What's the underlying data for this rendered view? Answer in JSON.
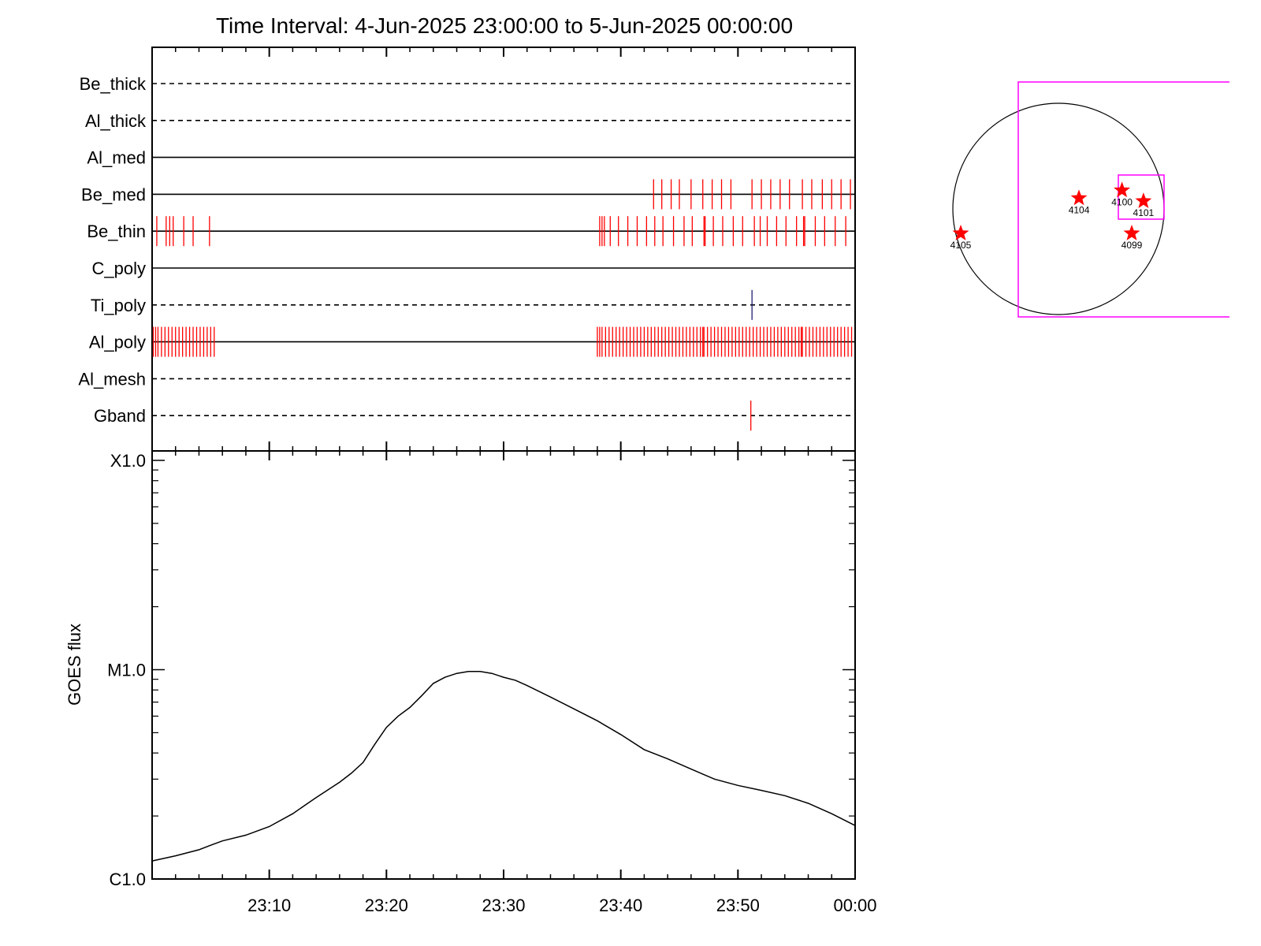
{
  "title": "Time Interval:  4-Jun-2025 23:00:00 to  5-Jun-2025 00:00:00",
  "chart_data": [
    {
      "type": "timeline",
      "xlim": [
        "23:00",
        "00:00"
      ],
      "rows": [
        {
          "label": "Be_thick",
          "line": "dashed",
          "marks": []
        },
        {
          "label": "Al_thick",
          "line": "dashed",
          "marks": []
        },
        {
          "label": "Al_med",
          "line": "solid",
          "marks": []
        },
        {
          "label": "Be_med",
          "line": "solid",
          "marks": [
            42.8,
            43.5,
            44.3,
            45.0,
            46.0,
            47.0,
            47.8,
            48.6,
            49.4,
            51.2,
            52.0,
            52.8,
            53.6,
            54.4,
            55.5,
            56.3,
            57.2,
            58.0,
            58.8,
            59.6
          ]
        },
        {
          "label": "Be_thin",
          "line": "solid",
          "marks": [
            0.4,
            1.2,
            1.5,
            1.8,
            2.7,
            3.5,
            4.9,
            38.2,
            38.4,
            38.6,
            39.1,
            39.8,
            40.6,
            41.4,
            42.2,
            42.9,
            43.6,
            44.5,
            45.4,
            46.1,
            47.1,
            47.2,
            47.9,
            48.7,
            49.6,
            50.4,
            51.4,
            51.9,
            52.5,
            53.3,
            54.1,
            55.0,
            55.6,
            55.7,
            56.6,
            57.4,
            58.3,
            59.2
          ]
        },
        {
          "label": "C_poly",
          "line": "solid",
          "marks": []
        },
        {
          "label": "Ti_poly",
          "line": "dashed",
          "marks": [
            51.2
          ],
          "mark_color": "#1e1e6e"
        },
        {
          "label": "Al_poly",
          "line": "solid",
          "marks": [
            0.1,
            0.3,
            0.5,
            0.8,
            1.1,
            1.4,
            1.7,
            2.0,
            2.3,
            2.6,
            2.9,
            3.2,
            3.5,
            3.8,
            4.1,
            4.4,
            4.7,
            5.0,
            5.3,
            38.0,
            38.2,
            38.4,
            38.7,
            39.0,
            39.3,
            39.6,
            39.9,
            40.2,
            40.5,
            40.8,
            41.1,
            41.4,
            41.7,
            42.0,
            42.3,
            42.6,
            42.9,
            43.2,
            43.5,
            43.8,
            44.1,
            44.4,
            44.7,
            45.0,
            45.3,
            45.6,
            45.9,
            46.2,
            46.5,
            46.8,
            47.0,
            47.1,
            47.4,
            47.7,
            48.0,
            48.3,
            48.6,
            48.9,
            49.2,
            49.5,
            49.8,
            50.1,
            50.4,
            50.7,
            51.0,
            51.3,
            51.6,
            51.9,
            52.2,
            52.5,
            52.8,
            53.1,
            53.4,
            53.7,
            54.0,
            54.3,
            54.6,
            54.9,
            55.2,
            55.4,
            55.5,
            55.8,
            56.1,
            56.4,
            56.7,
            57.0,
            57.3,
            57.6,
            57.9,
            58.2,
            58.5,
            58.8,
            59.1,
            59.4,
            59.7
          ]
        },
        {
          "label": "Al_mesh",
          "line": "dashed",
          "marks": []
        },
        {
          "label": "Gband",
          "line": "dashed",
          "marks": [
            51.1
          ]
        }
      ],
      "mark_color": "#ff0000"
    },
    {
      "type": "line",
      "ylabel": "GOES flux",
      "yscale": "log",
      "ylim": [
        1e-06,
        0.0001
      ],
      "yticks": [
        {
          "value": 1e-06,
          "label": "C1.0"
        },
        {
          "value": 1e-05,
          "label": "M1.0"
        },
        {
          "value": 0.0001,
          "label": "X1.0"
        }
      ],
      "xticks": [
        "23:10",
        "23:20",
        "23:30",
        "23:40",
        "23:50",
        "00:00"
      ],
      "xlim": [
        0,
        60
      ],
      "series": [
        {
          "x": [
            0,
            2,
            4,
            5,
            6,
            8,
            10,
            12,
            14,
            16,
            17,
            18,
            19,
            20,
            21,
            22,
            23,
            24,
            25,
            26,
            27,
            28,
            29,
            30,
            31,
            32,
            34,
            36,
            38,
            40,
            42,
            44,
            46,
            48,
            50,
            52,
            54,
            56,
            58,
            60
          ],
          "y": [
            1.22e-06,
            1.29e-06,
            1.38e-06,
            1.45e-06,
            1.52e-06,
            1.62e-06,
            1.78e-06,
            2.05e-06,
            2.45e-06,
            2.9e-06,
            3.2e-06,
            3.6e-06,
            4.4e-06,
            5.3e-06,
            6e-06,
            6.6e-06,
            7.5e-06,
            8.6e-06,
            9.2e-06,
            9.6e-06,
            9.8e-06,
            9.8e-06,
            9.6e-06,
            9.2e-06,
            8.9e-06,
            8.4e-06,
            7.4e-06,
            6.5e-06,
            5.7e-06,
            4.9e-06,
            4.15e-06,
            3.75e-06,
            3.35e-06,
            3e-06,
            2.8e-06,
            2.65e-06,
            2.5e-06,
            2.3e-06,
            2.05e-06,
            1.8e-06
          ]
        }
      ],
      "line_color": "#000000"
    },
    {
      "type": "scatter",
      "shape": "solar-disk-map",
      "points": [
        {
          "label": "4105",
          "x": -1,
          "y": -0.25
        },
        {
          "label": "4104",
          "x": 0.21,
          "y": 0.11
        },
        {
          "label": "4100",
          "x": 0.65,
          "y": 0.19
        },
        {
          "label": "4101",
          "x": 0.87,
          "y": 0.08
        },
        {
          "label": "4099",
          "x": 0.75,
          "y": -0.25
        }
      ],
      "marker_color": "#ff0000",
      "box_color": "#ff00ff"
    }
  ]
}
